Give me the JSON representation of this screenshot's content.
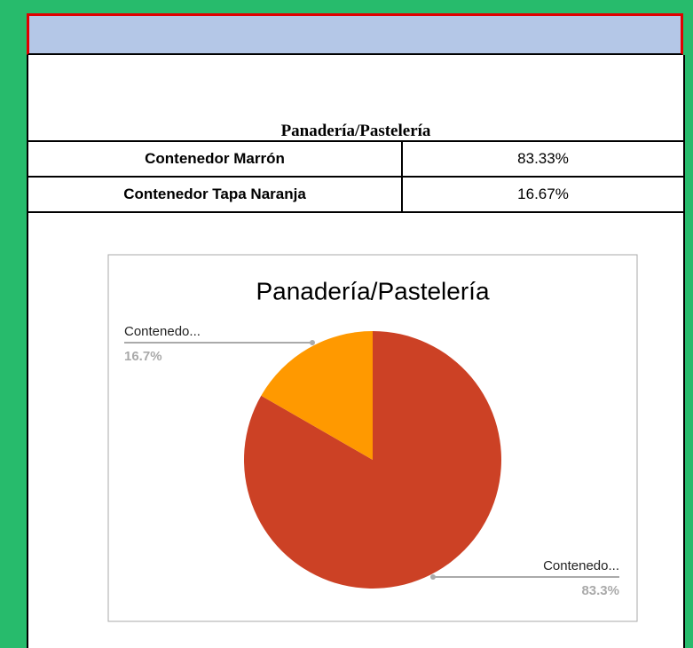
{
  "table": {
    "title": "Panadería/Pastelería",
    "rows": [
      [
        "Contenedor Marrón",
        "83.33%"
      ],
      [
        "Contenedor Tapa Naranja",
        "16.67%"
      ]
    ]
  },
  "chart_data": {
    "type": "pie",
    "title": "Panadería/Pastelería",
    "categories": [
      "Contenedo...",
      "Contenedo..."
    ],
    "values": [
      83.3,
      16.7
    ],
    "value_labels": [
      "83.3%",
      "16.7%"
    ],
    "colors": [
      "#cc4125",
      "#ff9900"
    ]
  }
}
